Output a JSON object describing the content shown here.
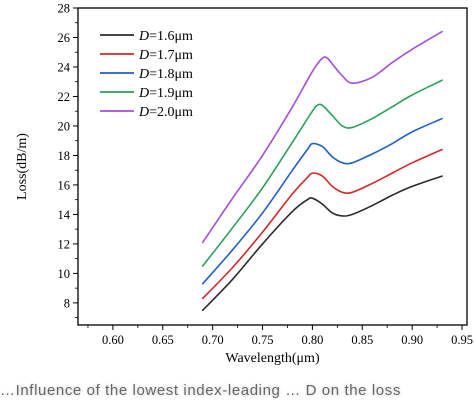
{
  "chart_data": {
    "type": "line",
    "xlabel": "Wavelength(μm)",
    "ylabel": "Loss(dB/m)",
    "xlim": [
      0.565,
      0.955
    ],
    "ylim": [
      6.5,
      28
    ],
    "xticks": [
      "0.60",
      "0.65",
      "0.70",
      "0.75",
      "0.80",
      "0.85",
      "0.90",
      "0.95"
    ],
    "xtick_values": [
      0.6,
      0.65,
      0.7,
      0.75,
      0.8,
      0.85,
      0.9,
      0.95
    ],
    "yticks": [
      "8",
      "10",
      "12",
      "14",
      "16",
      "18",
      "20",
      "22",
      "24",
      "26",
      "28"
    ],
    "ytick_values": [
      8,
      10,
      12,
      14,
      16,
      18,
      20,
      22,
      24,
      26,
      28
    ],
    "grid": false,
    "legend_position": "top-left",
    "series": [
      {
        "name_prefix": "D",
        "name_suffix": "=1.6μm",
        "color": "#2b2b2b",
        "x": [
          0.69,
          0.72,
          0.75,
          0.78,
          0.795,
          0.8,
          0.81,
          0.82,
          0.83,
          0.84,
          0.86,
          0.88,
          0.9,
          0.93
        ],
        "y": [
          7.5,
          9.6,
          12.0,
          14.2,
          15.0,
          15.1,
          14.7,
          14.1,
          13.9,
          14.0,
          14.6,
          15.3,
          15.9,
          16.6
        ]
      },
      {
        "name_prefix": "D",
        "name_suffix": "=1.7μm",
        "color": "#d62728",
        "x": [
          0.69,
          0.72,
          0.75,
          0.78,
          0.795,
          0.8,
          0.81,
          0.82,
          0.83,
          0.84,
          0.86,
          0.88,
          0.9,
          0.93
        ],
        "y": [
          8.3,
          10.4,
          12.8,
          15.4,
          16.5,
          16.8,
          16.6,
          15.9,
          15.5,
          15.5,
          16.1,
          16.8,
          17.5,
          18.4
        ]
      },
      {
        "name_prefix": "D",
        "name_suffix": "=1.8μm",
        "color": "#1f5fc8",
        "x": [
          0.69,
          0.72,
          0.75,
          0.78,
          0.795,
          0.8,
          0.81,
          0.82,
          0.83,
          0.84,
          0.86,
          0.88,
          0.9,
          0.93
        ],
        "y": [
          9.3,
          11.6,
          14.1,
          17.0,
          18.4,
          18.8,
          18.6,
          17.9,
          17.5,
          17.5,
          18.1,
          18.8,
          19.6,
          20.5
        ]
      },
      {
        "name_prefix": "D",
        "name_suffix": "=1.9μm",
        "color": "#2ca05a",
        "x": [
          0.69,
          0.72,
          0.75,
          0.78,
          0.8,
          0.805,
          0.81,
          0.82,
          0.83,
          0.84,
          0.86,
          0.88,
          0.9,
          0.93
        ],
        "y": [
          10.5,
          13.1,
          15.8,
          18.9,
          21.0,
          21.4,
          21.4,
          20.7,
          20.0,
          19.9,
          20.5,
          21.3,
          22.1,
          23.1
        ]
      },
      {
        "name_prefix": "D",
        "name_suffix": "=2.0μm",
        "color": "#a64ddb",
        "x": [
          0.69,
          0.72,
          0.75,
          0.78,
          0.8,
          0.81,
          0.815,
          0.82,
          0.83,
          0.84,
          0.86,
          0.88,
          0.9,
          0.93
        ],
        "y": [
          12.1,
          15.1,
          18.0,
          21.3,
          23.7,
          24.6,
          24.6,
          24.2,
          23.4,
          22.9,
          23.3,
          24.3,
          25.2,
          26.4
        ]
      }
    ]
  },
  "caption_text": "…Influence of the lowest index-leading … D on the loss"
}
